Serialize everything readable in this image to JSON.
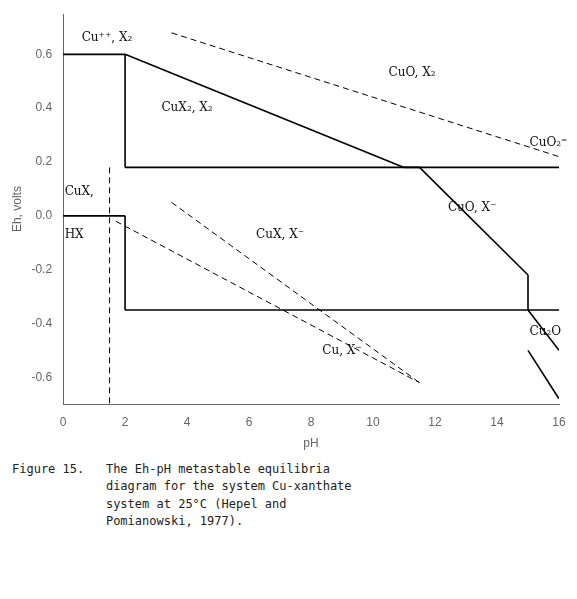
{
  "chart_data": {
    "type": "line",
    "xlabel": "pH",
    "ylabel": "Eh, volts",
    "xlim": [
      0,
      16
    ],
    "ylim": [
      -0.7,
      0.75
    ],
    "xticks": [
      0,
      2,
      4,
      6,
      8,
      10,
      12,
      14,
      16
    ],
    "yticks": [
      -0.6,
      -0.4,
      -0.2,
      {
        "value": 0.0,
        "label": "0.0"
      },
      0.2,
      0.4,
      0.6
    ],
    "grid": false,
    "color": "#000000",
    "series": [
      {
        "x": [
          0,
          2
        ],
        "values": [
          0.6,
          0.6
        ],
        "line_style": "solid"
      },
      {
        "x": [
          2,
          11.0
        ],
        "values": [
          0.6,
          0.18
        ],
        "line_style": "solid"
      },
      {
        "x": [
          11.0,
          16
        ],
        "values": [
          0.18,
          0.18
        ],
        "line_style": "solid"
      },
      {
        "x": [
          2,
          2
        ],
        "values": [
          0.6,
          0.18
        ],
        "line_style": "solid"
      },
      {
        "x": [
          2,
          11.5
        ],
        "values": [
          0.18,
          0.18
        ],
        "line_style": "solid"
      },
      {
        "x": [
          11.5,
          15.0
        ],
        "values": [
          0.18,
          -0.22
        ],
        "line_style": "solid"
      },
      {
        "x": [
          15.0,
          15.0
        ],
        "values": [
          -0.22,
          -0.35
        ],
        "line_style": "solid"
      },
      {
        "x": [
          15.0,
          16
        ],
        "values": [
          -0.35,
          -0.5
        ],
        "line_style": "solid"
      },
      {
        "x": [
          0,
          2
        ],
        "values": [
          0.0,
          0.0
        ],
        "line_style": "solid"
      },
      {
        "x": [
          2,
          2
        ],
        "values": [
          0.0,
          -0.35
        ],
        "line_style": "solid"
      },
      {
        "x": [
          2,
          16
        ],
        "values": [
          -0.35,
          -0.35
        ],
        "line_style": "solid"
      },
      {
        "x": [
          15.0,
          16
        ],
        "values": [
          -0.5,
          -0.68
        ],
        "line_style": "solid"
      },
      {
        "x": [
          1.5,
          1.5
        ],
        "values": [
          0.18,
          -0.7
        ],
        "line_style": "dashed"
      },
      {
        "x": [
          1.7,
          11.5
        ],
        "values": [
          -0.02,
          -0.62
        ],
        "line_style": "dashed"
      },
      {
        "x": [
          3.5,
          16
        ],
        "values": [
          0.68,
          0.22
        ],
        "line_style": "dashed"
      },
      {
        "x": [
          3.5,
          11.5
        ],
        "values": [
          0.05,
          -0.62
        ],
        "line_style": "dashed"
      }
    ],
    "annotations": [
      {
        "x": 0.6,
        "y": 0.66,
        "text": "Cu⁺⁺, X₂",
        "align": "left"
      },
      {
        "x": 4.0,
        "y": 0.4,
        "text": "CuX₂, X₂",
        "align": "center"
      },
      {
        "x": 10.5,
        "y": 0.53,
        "text": "CuO, X₂",
        "align": "left"
      },
      {
        "x": 15.05,
        "y": 0.27,
        "text": "CuO₂⁼",
        "align": "left"
      },
      {
        "x": 0.05,
        "y": 0.09,
        "text": "CuX,",
        "align": "left"
      },
      {
        "x": 0.05,
        "y": -0.07,
        "text": "HX",
        "align": "left"
      },
      {
        "x": 7.0,
        "y": -0.07,
        "text": "CuX, X⁻",
        "align": "center"
      },
      {
        "x": 13.2,
        "y": 0.03,
        "text": "CuO, X⁻",
        "align": "center"
      },
      {
        "x": 15.05,
        "y": -0.43,
        "text": "Cu₂O",
        "align": "left"
      },
      {
        "x": 9.0,
        "y": -0.5,
        "text": "Cu, X⁻",
        "align": "center"
      }
    ],
    "caption": [
      "Figure 15.   The Eh-pH metastable equilibria",
      "             diagram for the system Cu-xanthate",
      "             system at 25°C (Hepel and",
      "             Pomianowski, 1977)."
    ]
  }
}
